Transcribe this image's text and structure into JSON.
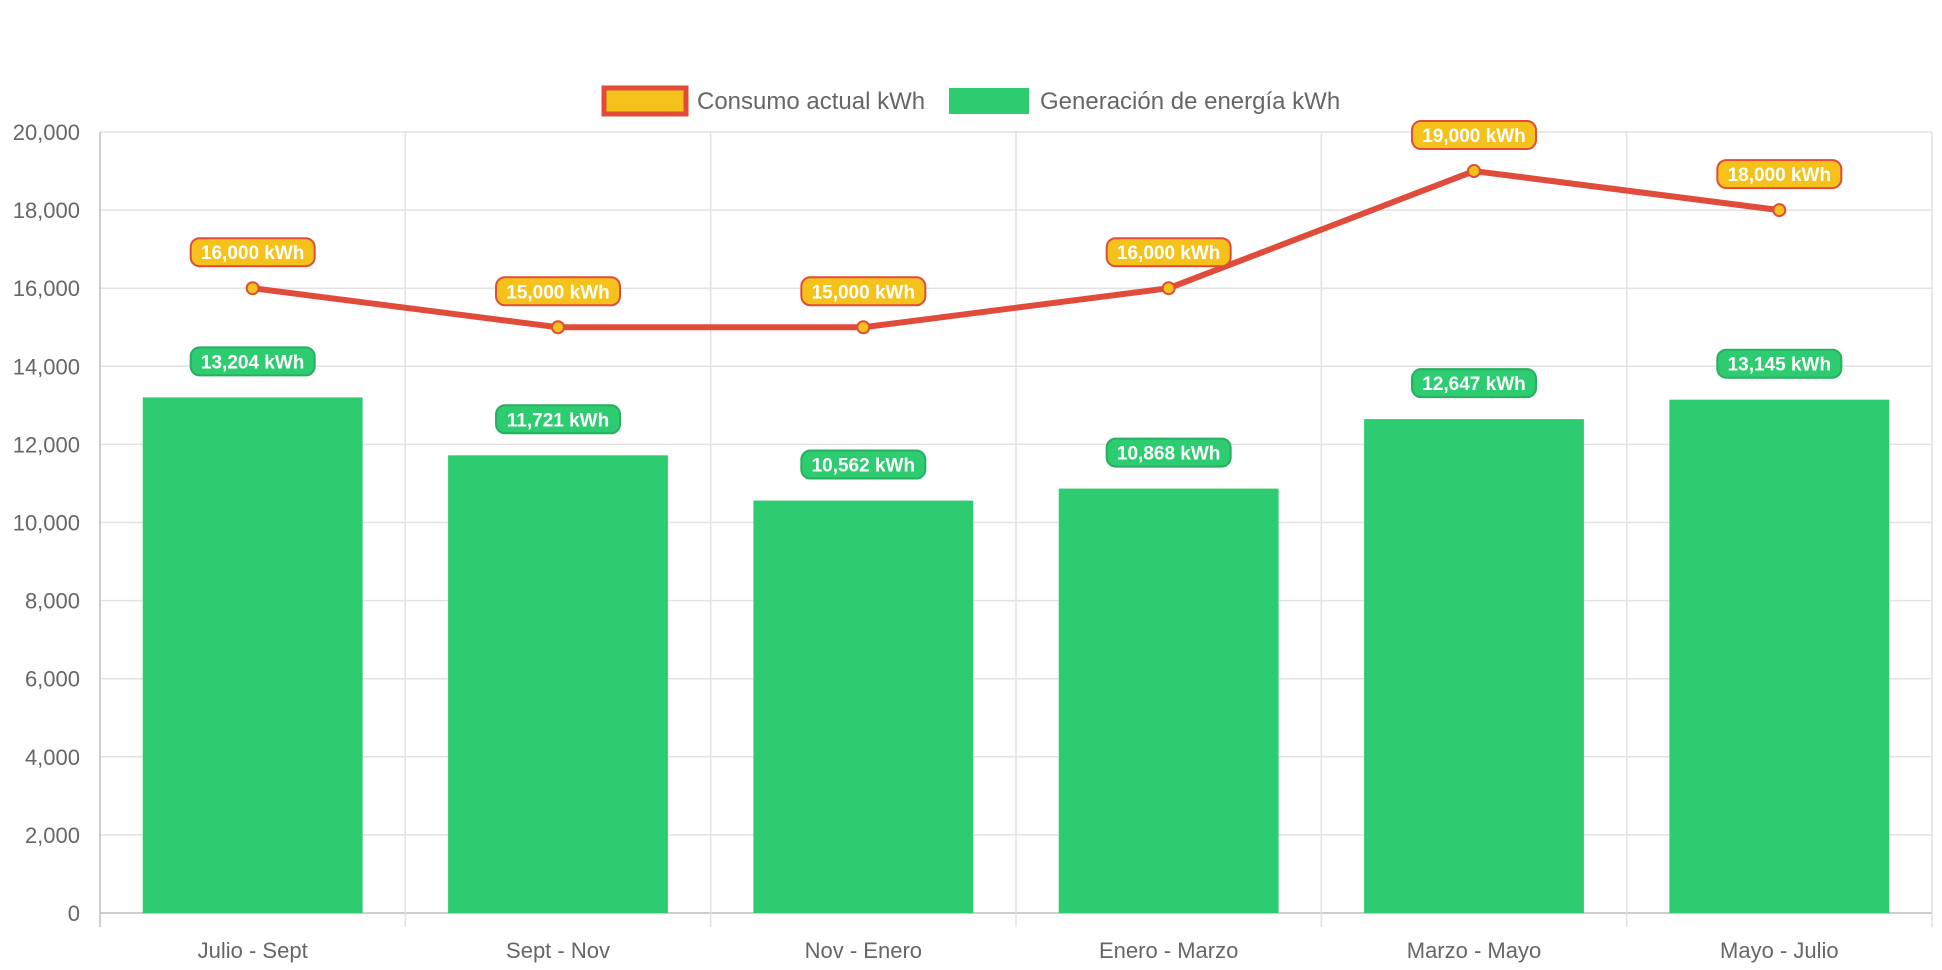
{
  "chart_data": {
    "type": "bar",
    "categories": [
      "Julio - Sept",
      "Sept - Nov",
      "Nov - Enero",
      "Enero - Marzo",
      "Marzo - Mayo",
      "Mayo - Julio"
    ],
    "series": [
      {
        "name": "Consumo actual kWh",
        "type": "line",
        "values": [
          16000,
          15000,
          15000,
          16000,
          19000,
          18000
        ],
        "labels": [
          "16,000 kWh",
          "15,000 kWh",
          "15,000 kWh",
          "16,000 kWh",
          "19,000 kWh",
          "18,000 kWh"
        ],
        "line_color": "#e14b3a",
        "fill_color": "#f5c21b"
      },
      {
        "name": "Generación de energía kWh",
        "type": "bar",
        "values": [
          13204,
          11721,
          10562,
          10868,
          12647,
          13145
        ],
        "labels": [
          "13,204 kWh",
          "11,721 kWh",
          "10,562 kWh",
          "10,868 kWh",
          "12,647 kWh",
          "13,145 kWh"
        ],
        "color": "#2ecc71",
        "label_border": "#27ae60"
      }
    ],
    "y_ticks": [
      "0",
      "2,000",
      "4,000",
      "6,000",
      "8,000",
      "10,000",
      "12,000",
      "14,000",
      "16,000",
      "18,000",
      "20,000"
    ],
    "ylim": [
      0,
      20000
    ],
    "grid": true,
    "legend_position": "top-center"
  }
}
